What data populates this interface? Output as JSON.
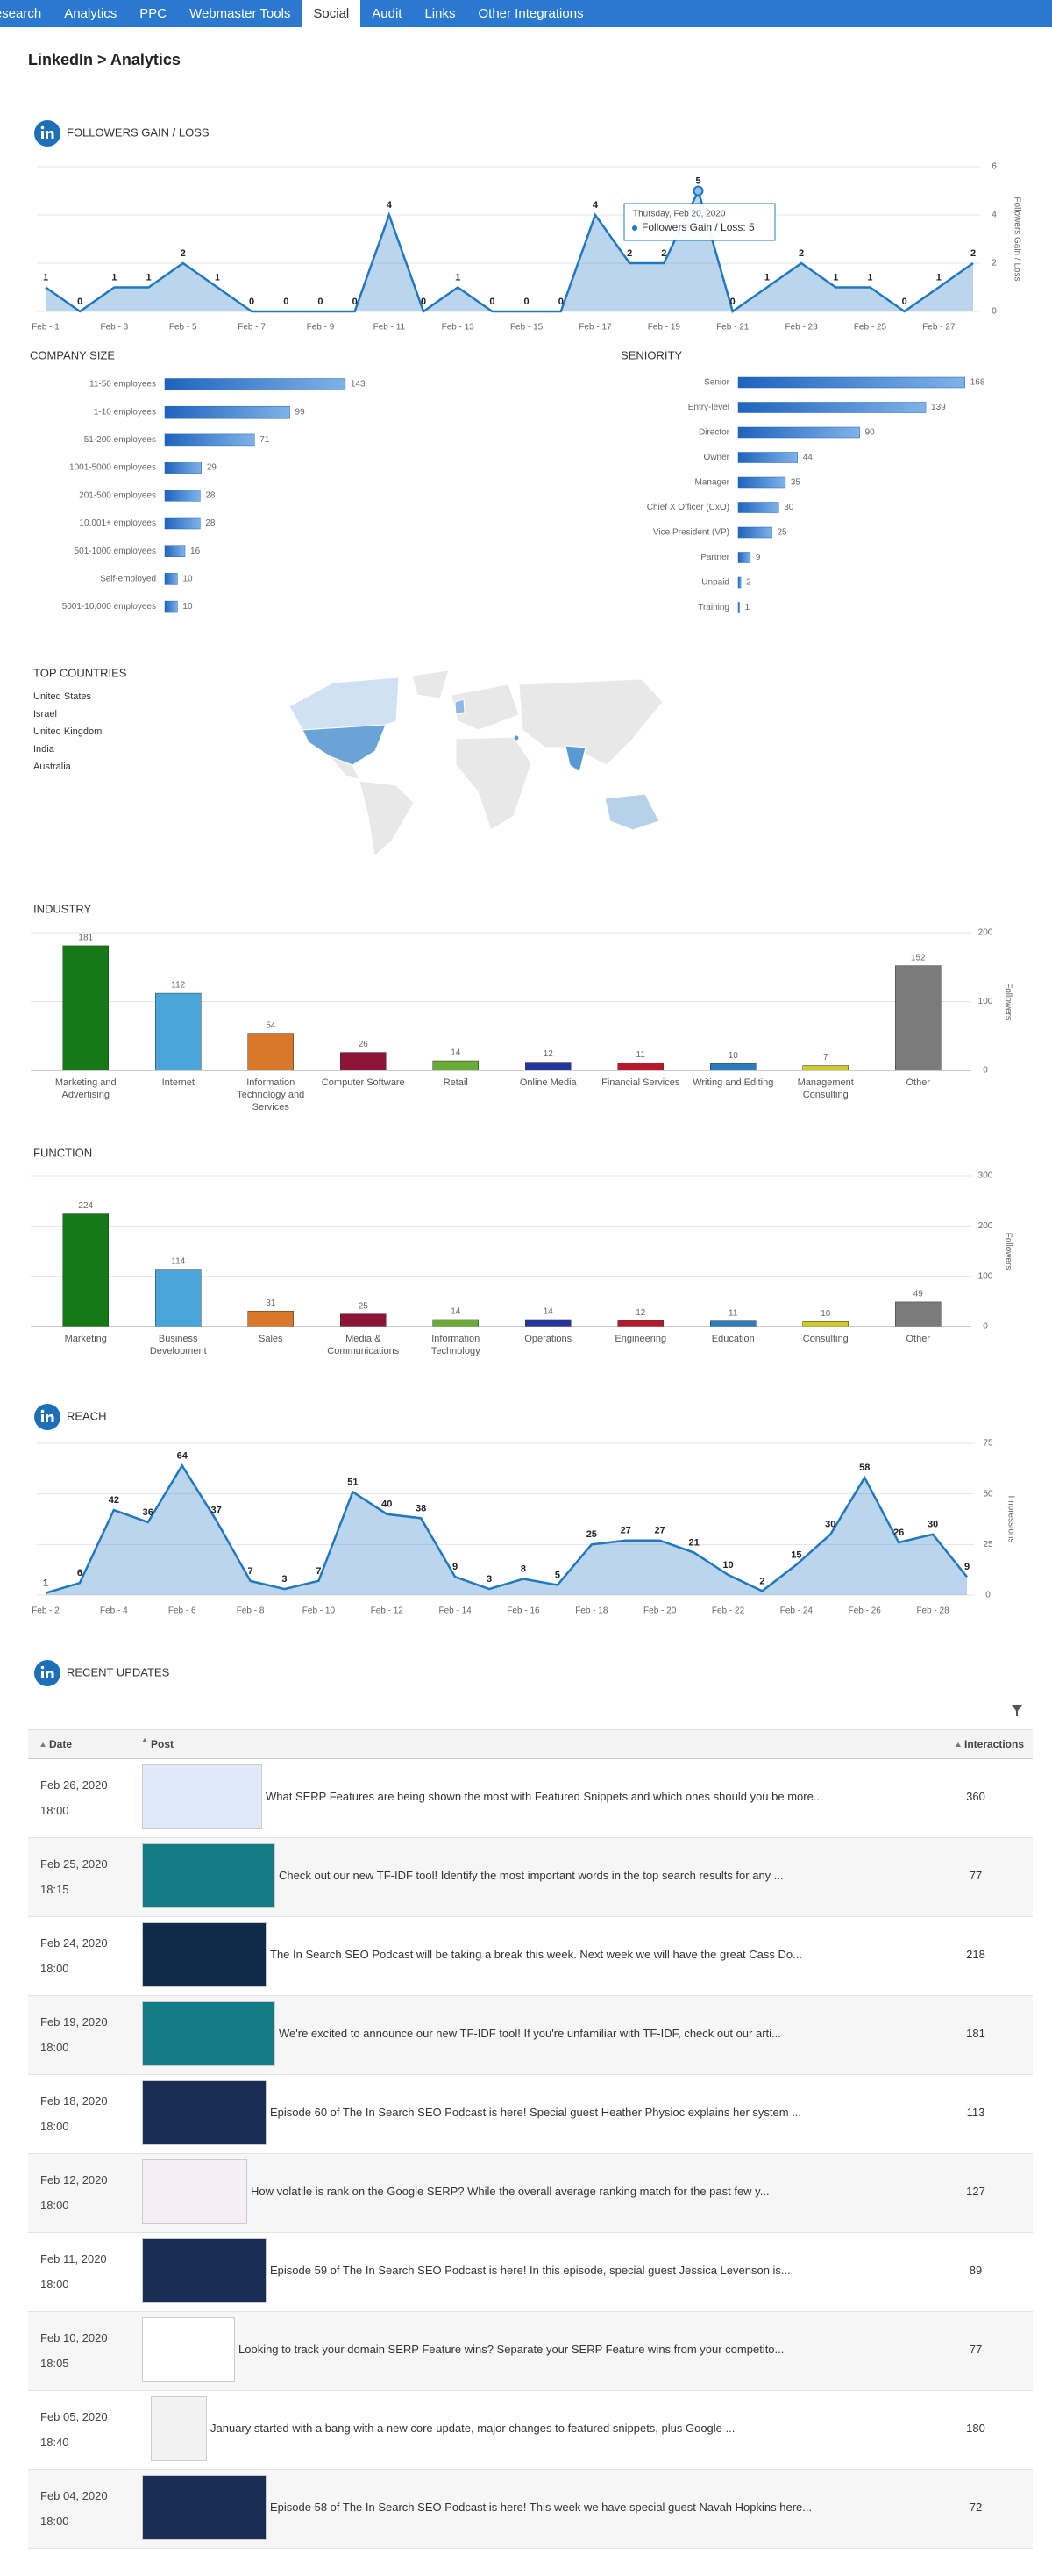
{
  "nav": {
    "tabs": [
      "Research",
      "Analytics",
      "PPC",
      "Webmaster Tools",
      "Social",
      "Audit",
      "Links",
      "Other Integrations"
    ],
    "active_tab": 4
  },
  "breadcrumb": "LinkedIn > Analytics",
  "chart_data": [
    {
      "type": "line",
      "title": "FOLLOWERS GAIN / LOSS",
      "y_label": "Followers Gain / Loss",
      "categories": [
        "Feb - 1",
        null,
        "Feb - 3",
        null,
        "Feb - 5",
        null,
        "Feb - 7",
        null,
        "Feb - 9",
        null,
        "Feb - 11",
        null,
        "Feb - 13",
        null,
        "Feb - 15",
        null,
        "Feb - 17",
        null,
        "Feb - 19",
        null,
        "Feb - 21",
        null,
        "Feb - 23",
        null,
        "Feb - 25",
        null,
        "Feb - 27",
        null
      ],
      "values": [
        1,
        0,
        1,
        1,
        2,
        1,
        0,
        0,
        0,
        0,
        4,
        0,
        1,
        0,
        0,
        0,
        4,
        2,
        2,
        5,
        0,
        1,
        2,
        1,
        1,
        0,
        1,
        2
      ],
      "color": "#1f78c1",
      "ylim": [
        0,
        6
      ],
      "yticks": [
        0,
        2,
        4,
        6
      ],
      "grid": true,
      "tooltip": {
        "title": "Thursday, Feb 20, 2020",
        "text": "Followers Gain / Loss: 5"
      }
    },
    {
      "type": "bar",
      "orientation": "horizontal",
      "title": "COMPANY SIZE",
      "categories": [
        "11-50 employees",
        "1-10 employees",
        "51-200 employees",
        "1001-5000 employees",
        "201-500 employees",
        "10,001+ employees",
        "501-1000 employees",
        "Self-employed",
        "5001-10,000 employees"
      ],
      "values": [
        143,
        99,
        71,
        29,
        28,
        28,
        16,
        10,
        10
      ],
      "color": "#1f63bd",
      "xlim": [
        0,
        200
      ]
    },
    {
      "type": "bar",
      "orientation": "horizontal",
      "title": "SENIORITY",
      "categories": [
        "Senior",
        "Entry-level",
        "Director",
        "Owner",
        "Manager",
        "Chief X Officer (CxO)",
        "Vice President (VP)",
        "Partner",
        "Unpaid",
        "Training"
      ],
      "values": [
        168,
        139,
        90,
        44,
        35,
        30,
        25,
        9,
        2,
        1
      ],
      "color": "#1f63bd",
      "xlim": [
        0,
        200
      ]
    },
    {
      "type": "bar",
      "title": "INDUSTRY",
      "y_label": "Followers",
      "categories": [
        "Marketing and Advertising",
        "Internet",
        "Information Technology and Services",
        "Computer Software",
        "Retail",
        "Online Media",
        "Financial Services",
        "Writing and Editing",
        "Management Consulting",
        "Other"
      ],
      "values": [
        181,
        112,
        54,
        26,
        14,
        12,
        11,
        10,
        7,
        152
      ],
      "colors": [
        "#157a15",
        "#4aa5db",
        "#d9782b",
        "#8c1538",
        "#6aaa36",
        "#27369a",
        "#b8192a",
        "#2b7bbd",
        "#cfcc2a",
        "#7b7b7b"
      ],
      "ylim": [
        0,
        200
      ],
      "yticks": [
        0,
        100,
        200
      ],
      "grid": true
    },
    {
      "type": "bar",
      "title": "FUNCTION",
      "y_label": "Followers",
      "categories": [
        "Marketing",
        "Business Development",
        "Sales",
        "Media & Communications",
        "Information Technology",
        "Operations",
        "Engineering",
        "Education",
        "Consulting",
        "Other"
      ],
      "values": [
        224,
        114,
        31,
        25,
        14,
        14,
        12,
        11,
        10,
        49
      ],
      "colors": [
        "#157a15",
        "#4aa5db",
        "#d9782b",
        "#8c1538",
        "#6aaa36",
        "#27369a",
        "#b8192a",
        "#2b7bbd",
        "#cfcc2a",
        "#7b7b7b"
      ],
      "ylim": [
        0,
        300
      ],
      "yticks": [
        0,
        100,
        200,
        300
      ],
      "grid": true
    },
    {
      "type": "line",
      "title": "REACH",
      "y_label": "Impressions",
      "categories": [
        "Feb - 2",
        null,
        "Feb - 4",
        null,
        "Feb - 6",
        null,
        "Feb - 8",
        null,
        "Feb - 10",
        null,
        "Feb - 12",
        null,
        "Feb - 14",
        null,
        "Feb - 16",
        null,
        "Feb - 18",
        null,
        "Feb - 20",
        null,
        "Feb - 22",
        null,
        "Feb - 24",
        null,
        "Feb - 26",
        null,
        "Feb - 28",
        null
      ],
      "values": [
        1,
        6,
        42,
        36,
        64,
        37,
        7,
        3,
        7,
        51,
        40,
        38,
        9,
        3,
        8,
        5,
        25,
        27,
        27,
        21,
        10,
        2,
        15,
        30,
        58,
        26,
        30,
        9
      ],
      "color": "#1f78c1",
      "ylim": [
        0,
        75
      ],
      "yticks": [
        0,
        25,
        50,
        75
      ],
      "grid": true
    }
  ],
  "top_countries": {
    "title": "TOP COUNTRIES",
    "countries": [
      "United States",
      "Israel",
      "United Kingdom",
      "India",
      "Australia"
    ]
  },
  "recent_updates": {
    "title": "RECENT UPDATES",
    "columns": [
      "Date",
      "Post",
      "Interactions"
    ],
    "rows": [
      {
        "date": "Feb 26, 2020",
        "time": "18:00",
        "post": "What SERP Features are being shown the most with Featured Snippets and which ones should you be more...",
        "interactions": 360
      },
      {
        "date": "Feb 25, 2020",
        "time": "18:15",
        "post": "Check out our new TF-IDF tool! Identify the most important words in the top search results for any ...",
        "interactions": 77
      },
      {
        "date": "Feb 24, 2020",
        "time": "18:00",
        "post": "The In Search SEO Podcast will be taking a break this week. Next week we will have the great Cass Do...",
        "interactions": 218
      },
      {
        "date": "Feb 19, 2020",
        "time": "18:00",
        "post": "We're excited to announce our new TF-IDF tool! If you're unfamiliar with TF-IDF, check out our arti...",
        "interactions": 181
      },
      {
        "date": "Feb 18, 2020",
        "time": "18:00",
        "post": "Episode 60 of The In Search SEO Podcast is here! Special guest Heather Physioc explains her system ...",
        "interactions": 113
      },
      {
        "date": "Feb 12, 2020",
        "time": "18:00",
        "post": "How volatile is rank on the Google SERP? While the overall average ranking match for the past few y...",
        "interactions": 127
      },
      {
        "date": "Feb 11, 2020",
        "time": "18:00",
        "post": "Episode 59 of The In Search SEO Podcast is here! In this episode, special guest Jessica Levenson is...",
        "interactions": 89
      },
      {
        "date": "Feb 10, 2020",
        "time": "18:05",
        "post": "Looking to track your domain SERP Feature wins? Separate your SERP Feature wins from your competito...",
        "interactions": 77
      },
      {
        "date": "Feb 05, 2020",
        "time": "18:40",
        "post": "January started with a bang with a new core update, major changes to featured snippets, plus Google ...",
        "interactions": 180
      },
      {
        "date": "Feb 04, 2020",
        "time": "18:00",
        "post": "Episode 58 of The In Search SEO Podcast is here! This week we have special guest Navah Hopkins here...",
        "interactions": 72
      }
    ]
  }
}
